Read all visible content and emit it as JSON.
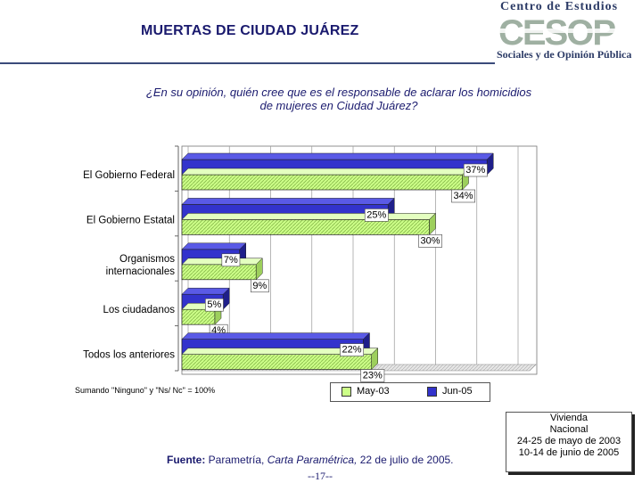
{
  "header": {
    "title": "MUERTAS DE CIUDAD JUÁREZ",
    "logo_line1": "Centro de Estudios",
    "logo_big": "CESOP",
    "logo_line3": "Sociales y de Opinión Pública"
  },
  "question": {
    "line1": "¿En su  opinión, quién cree que es el responsable de aclarar los homicidios",
    "line2": "de mujeres en Ciudad Juárez?"
  },
  "chart_data": {
    "type": "bar",
    "orientation": "horizontal",
    "title": "¿En su opinión, quién cree que es el responsable de aclarar los homicidios de mujeres en Ciudad Juárez?",
    "categories": [
      "El Gobierno Federal",
      "El Gobierno Estatal",
      "Organismos internacionales",
      "Los ciudadanos",
      "Todos los anteriores"
    ],
    "category_lines": [
      [
        "El Gobierno Federal"
      ],
      [
        "El Gobierno Estatal"
      ],
      [
        "Organismos",
        "internacionales"
      ],
      [
        "Los ciudadanos"
      ],
      [
        "Todos los anteriores"
      ]
    ],
    "series": [
      {
        "name": "Jun-05",
        "values": [
          37,
          25,
          7,
          5,
          22
        ],
        "labels": [
          "37%",
          "25%",
          "7%",
          "5%",
          "22%"
        ],
        "color": "#3333cc"
      },
      {
        "name": "May-03",
        "values": [
          34,
          30,
          9,
          4,
          23
        ],
        "labels": [
          "34%",
          "30%",
          "9%",
          "4%",
          "23%"
        ],
        "color": "#ccff88"
      }
    ],
    "xlim": [
      0,
      40
    ],
    "grid": true,
    "legend": [
      "May-03",
      "Jun-05"
    ],
    "legend_position": "bottom-right"
  },
  "note": "Sumando \"Ninguno\" y \"Ns/ Nc\" = 100%",
  "source": {
    "label": "Fuente:",
    "text_pre": " Parametría, ",
    "text_italic": "Carta Paramétrica,",
    "text_post": " 22 de julio de 2005."
  },
  "page_number": "--17--",
  "info_box": {
    "line1": "Vivienda",
    "line2": "Nacional",
    "line3": "24-25 de mayo de 2003",
    "line4": "10-14 de junio de 2005"
  }
}
